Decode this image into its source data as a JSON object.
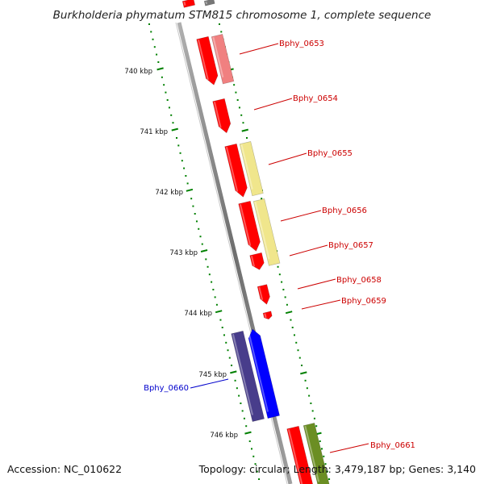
{
  "title": "Burkholderia phymatum STM815 chromosome 1, complete sequence",
  "footer": {
    "accession": "Accession: NC_010622",
    "summary": "Topology: circular; Length: 3,479,187 bp; Genes: 3,140"
  },
  "colors": {
    "forward_cds": "#ff0000",
    "forward_highlight_pink": "#f08080",
    "forward_highlight_yellow": "#f0e68c",
    "forward_highlight_green": "#6b8e23",
    "reverse_cds": "#0000ff",
    "reverse_highlight": "#483d8b",
    "backbone": "#808080",
    "tick": "#008000",
    "label_forward": "#cc0000",
    "label_reverse": "#0000cc"
  },
  "scale_labels": [
    "740 kbp",
    "741 kbp",
    "742 kbp",
    "743 kbp",
    "744 kbp",
    "745 kbp",
    "746 kbp"
  ],
  "genes": [
    {
      "name": "Bphy_0653",
      "strand": "forward"
    },
    {
      "name": "Bphy_0654",
      "strand": "forward"
    },
    {
      "name": "Bphy_0655",
      "strand": "forward"
    },
    {
      "name": "Bphy_0656",
      "strand": "forward"
    },
    {
      "name": "Bphy_0657",
      "strand": "forward"
    },
    {
      "name": "Bphy_0658",
      "strand": "forward"
    },
    {
      "name": "Bphy_0659",
      "strand": "forward"
    },
    {
      "name": "Bphy_0660",
      "strand": "reverse"
    },
    {
      "name": "Bphy_0661",
      "strand": "forward"
    }
  ]
}
